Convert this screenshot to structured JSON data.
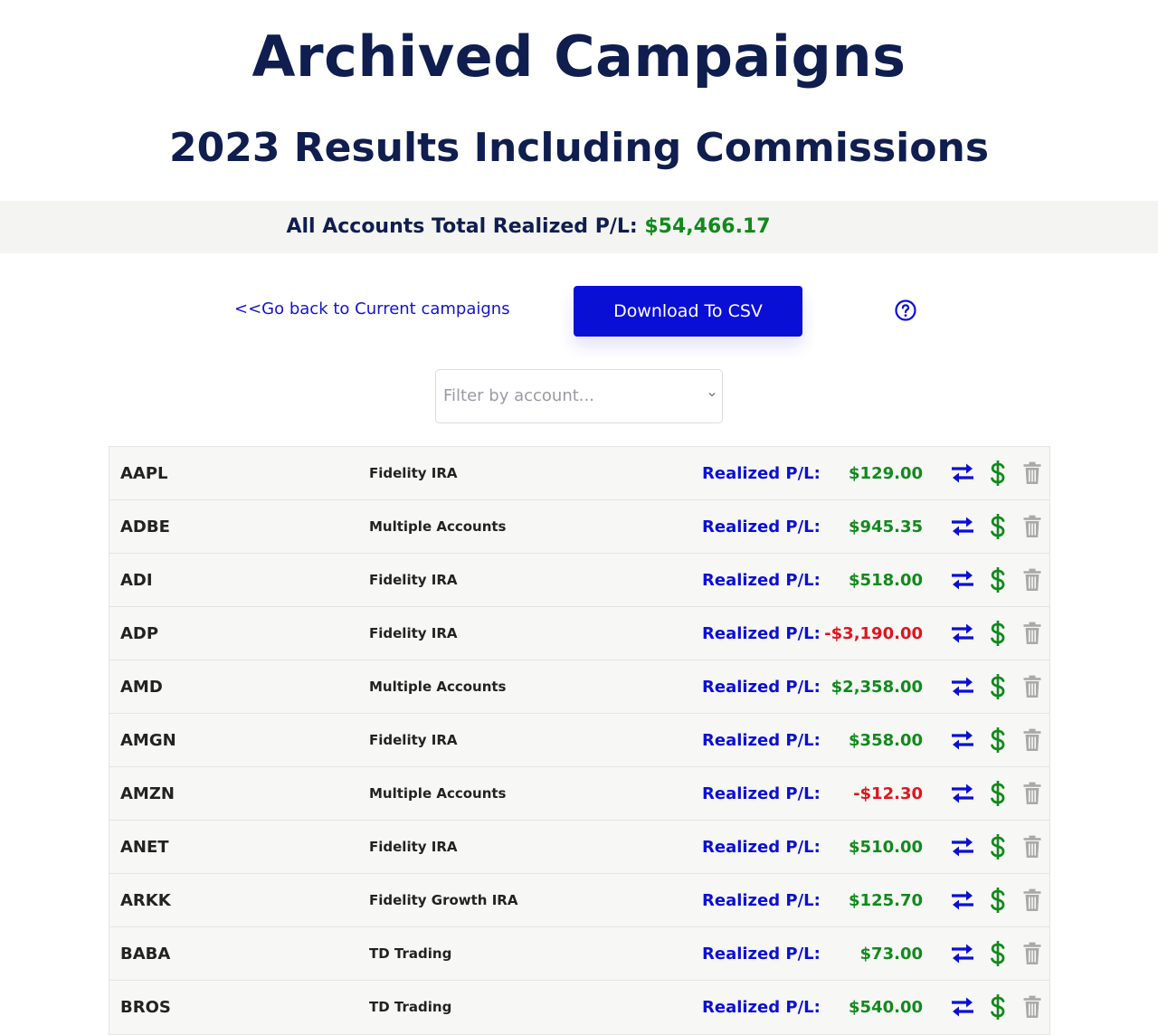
{
  "header": {
    "title": "Archived Campaigns",
    "subtitle": "2023 Results Including Commissions"
  },
  "totals": {
    "label": "All Accounts Total Realized P/L:",
    "value": "$54,466.17"
  },
  "actions": {
    "back_link": "<<Go back to Current campaigns",
    "csv_button": "Download To CSV",
    "help_icon": "question-circle-icon"
  },
  "filter": {
    "placeholder": "Filter by account..."
  },
  "colors": {
    "title": "#0f1d4f",
    "accent_blue": "#0a0fd6",
    "positive": "#118a1c",
    "negative": "#e0141c",
    "trash_gray": "#a9a9a9"
  },
  "campaigns": [
    {
      "ticker": "AAPL",
      "account": "Fidelity IRA",
      "pl_label": "Realized P/L:",
      "pl": "$129.00",
      "sign": "pos"
    },
    {
      "ticker": "ADBE",
      "account": "Multiple Accounts",
      "pl_label": "Realized P/L:",
      "pl": "$945.35",
      "sign": "pos"
    },
    {
      "ticker": "ADI",
      "account": "Fidelity IRA",
      "pl_label": "Realized P/L:",
      "pl": "$518.00",
      "sign": "pos"
    },
    {
      "ticker": "ADP",
      "account": "Fidelity IRA",
      "pl_label": "Realized P/L:",
      "pl": "-$3,190.00",
      "sign": "neg"
    },
    {
      "ticker": "AMD",
      "account": "Multiple Accounts",
      "pl_label": "Realized P/L:",
      "pl": "$2,358.00",
      "sign": "pos"
    },
    {
      "ticker": "AMGN",
      "account": "Fidelity IRA",
      "pl_label": "Realized P/L:",
      "pl": "$358.00",
      "sign": "pos"
    },
    {
      "ticker": "AMZN",
      "account": "Multiple Accounts",
      "pl_label": "Realized P/L:",
      "pl": "-$12.30",
      "sign": "neg"
    },
    {
      "ticker": "ANET",
      "account": "Fidelity IRA",
      "pl_label": "Realized P/L:",
      "pl": "$510.00",
      "sign": "pos"
    },
    {
      "ticker": "ARKK",
      "account": "Fidelity Growth IRA",
      "pl_label": "Realized P/L:",
      "pl": "$125.70",
      "sign": "pos"
    },
    {
      "ticker": "BABA",
      "account": "TD Trading",
      "pl_label": "Realized P/L:",
      "pl": "$73.00",
      "sign": "pos"
    },
    {
      "ticker": "BROS",
      "account": "TD Trading",
      "pl_label": "Realized P/L:",
      "pl": "$540.00",
      "sign": "pos"
    }
  ],
  "row_icons": [
    "swap-arrows-icon",
    "dollar-icon",
    "trash-icon"
  ]
}
